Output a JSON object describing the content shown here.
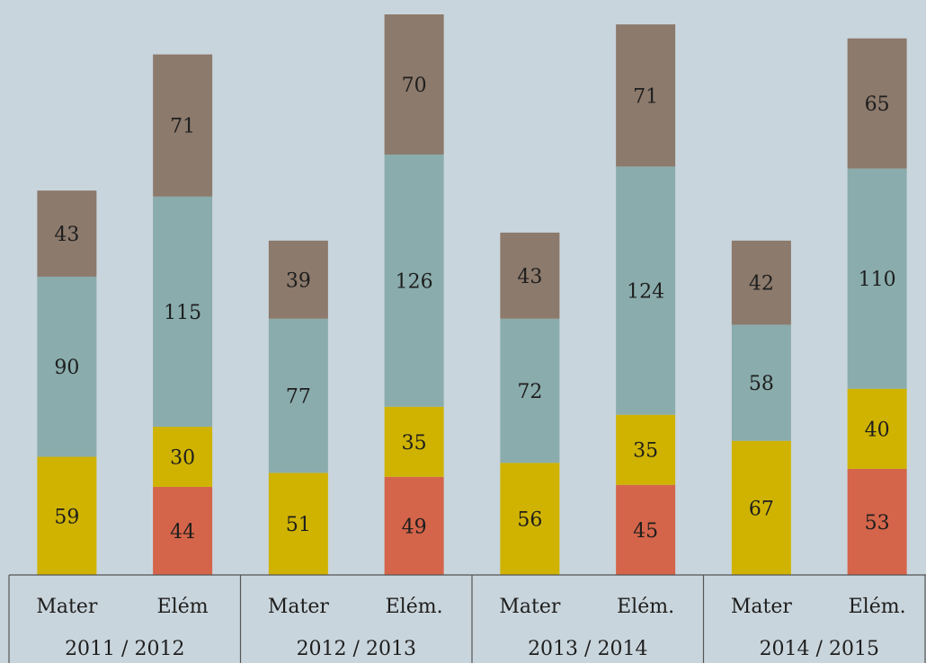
{
  "chart_data": {
    "type": "stacked_bar",
    "categories": [
      "Mater",
      "Elém",
      "Mater",
      "Elém.",
      "Mater",
      "Elém.",
      "Mater",
      "Elém."
    ],
    "groups": [
      "2011 / 2012",
      "2012 / 2013",
      "2013 / 2014",
      "2014 / 2015"
    ],
    "series": [
      {
        "color": "#d4654a",
        "values": [
          null,
          44,
          null,
          49,
          null,
          45,
          null,
          53
        ]
      },
      {
        "color": "#cfb300",
        "values": [
          59,
          30,
          51,
          35,
          56,
          35,
          67,
          40
        ]
      },
      {
        "color": "#8aacac",
        "values": [
          90,
          115,
          77,
          126,
          72,
          124,
          58,
          110
        ]
      },
      {
        "color": "#8c7a6c",
        "values": [
          43,
          71,
          39,
          70,
          43,
          71,
          42,
          65
        ]
      }
    ]
  }
}
